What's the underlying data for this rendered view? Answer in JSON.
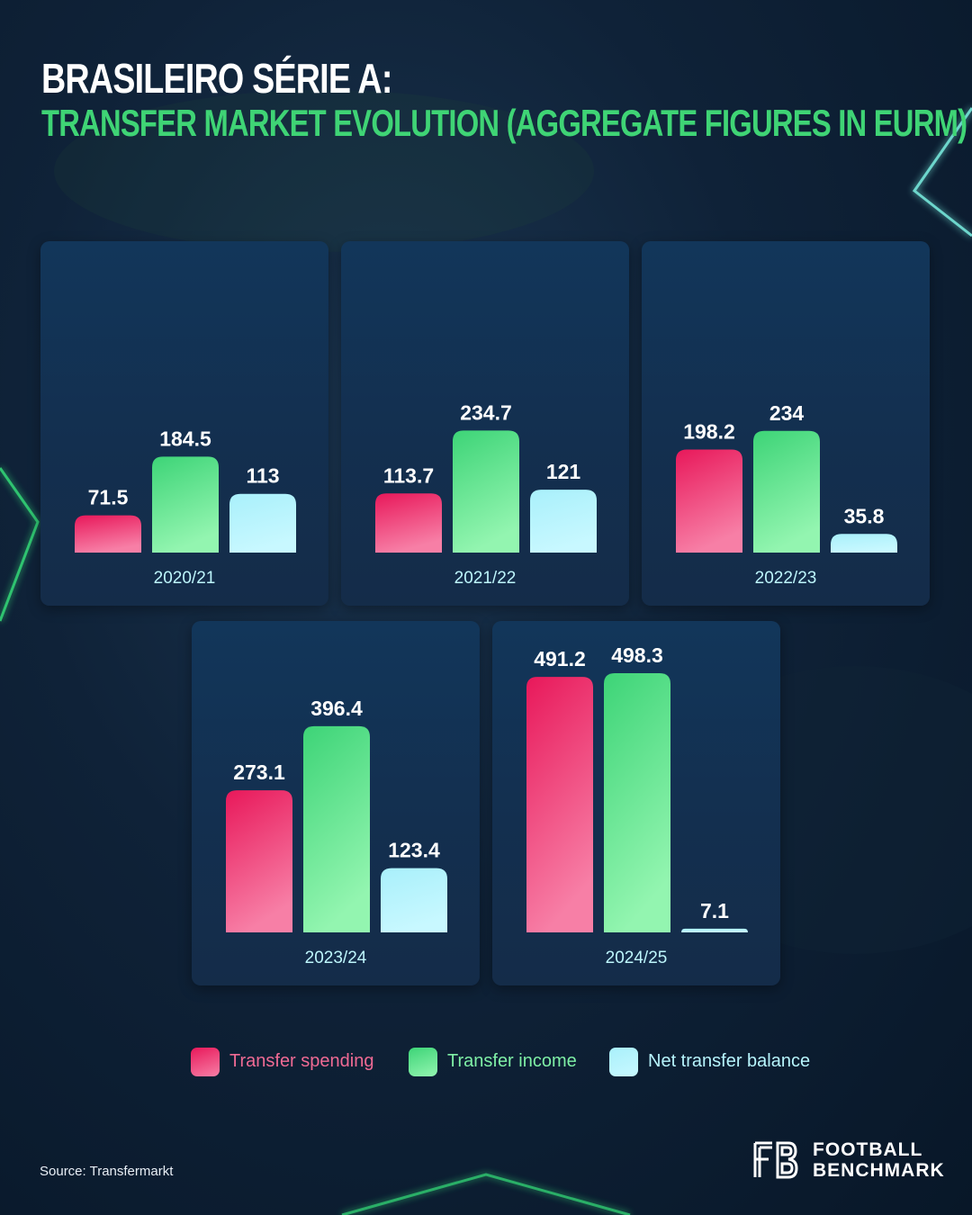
{
  "title": {
    "line1": "BRASILEIRO SÉRIE A:",
    "line2": "TRANSFER MARKET EVOLUTION (AGGREGATE FIGURES IN EURM)"
  },
  "colors": {
    "spending": [
      "#e8185a",
      "#f77fa6"
    ],
    "income": [
      "#3dd477",
      "#93f5b0"
    ],
    "net": [
      "#a9f0fb",
      "#c8f8ff"
    ],
    "title_accent": "#3fd475",
    "panel_bg": "#132f4f"
  },
  "chart_data": {
    "type": "bar",
    "series": [
      {
        "name": "Transfer spending",
        "values": [
          71.5,
          113.7,
          198.2,
          273.1,
          491.2
        ]
      },
      {
        "name": "Transfer income",
        "values": [
          184.5,
          234.7,
          234,
          396.4,
          498.3
        ]
      },
      {
        "name": "Net transfer balance",
        "values": [
          113,
          121,
          35.8,
          123.4,
          7.1
        ]
      }
    ],
    "categories": [
      "2020/21",
      "2021/22",
      "2022/23",
      "2023/24",
      "2024/25"
    ],
    "value_labels": [
      [
        "71.5",
        "184.5",
        "113"
      ],
      [
        "113.7",
        "234.7",
        "121"
      ],
      [
        "198.2",
        "234",
        "35.8"
      ],
      [
        "273.1",
        "396.4",
        "123.4"
      ],
      [
        "491.2",
        "498.3",
        "7.1"
      ]
    ],
    "title": "",
    "xlabel": "",
    "ylabel": "",
    "grid": false,
    "legend_position": "bottom"
  },
  "legend": {
    "items": [
      {
        "label": "Transfer spending",
        "key": "spending"
      },
      {
        "label": "Transfer income",
        "key": "income"
      },
      {
        "label": "Net transfer balance",
        "key": "net"
      }
    ]
  },
  "footer": {
    "source": "Source: Transfermarkt",
    "logo_line1": "FOOTBALL",
    "logo_line2": "BENCHMARK"
  }
}
